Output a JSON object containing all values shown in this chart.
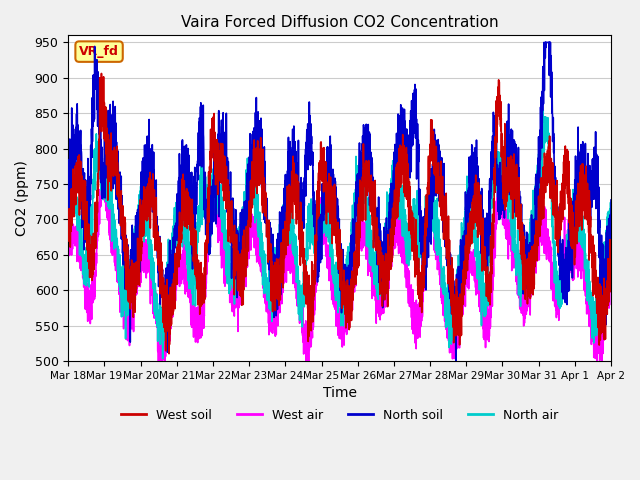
{
  "title": "Vaira Forced Diffusion CO2 Concentration",
  "xlabel": "Time",
  "ylabel": "CO2 (ppm)",
  "ylim": [
    500,
    960
  ],
  "yticks": [
    500,
    550,
    600,
    650,
    700,
    750,
    800,
    850,
    900,
    950
  ],
  "xlim": [
    0,
    360
  ],
  "xtick_positions": [
    0,
    24,
    48,
    72,
    96,
    120,
    144,
    168,
    192,
    216,
    240,
    264,
    288,
    312,
    336,
    360
  ],
  "xtick_labels": [
    "Mar 18",
    "Mar 19",
    "Mar 20",
    "Mar 21",
    "Mar 22",
    "Mar 23",
    "Mar 24",
    "Mar 25",
    "Mar 26",
    "Mar 27",
    "Mar 28",
    "Mar 29",
    "Mar 30",
    "Mar 31",
    "Apr 1",
    "Apr 2"
  ],
  "legend_labels": [
    "West soil",
    "West air",
    "North soil",
    "North air"
  ],
  "colors": {
    "west_soil": "#cc0000",
    "west_air": "#ff00ff",
    "north_soil": "#0000cc",
    "north_air": "#00cccc"
  },
  "vr_fd_label": "VR_fd",
  "vr_fd_bg": "#ffff99",
  "vr_fd_border": "#cc6600",
  "vr_fd_text_color": "#cc0000",
  "bg_color": "#f0f0f0",
  "plot_bg": "#ffffff",
  "grid_color": "#cccccc",
  "linewidth": 1.2
}
